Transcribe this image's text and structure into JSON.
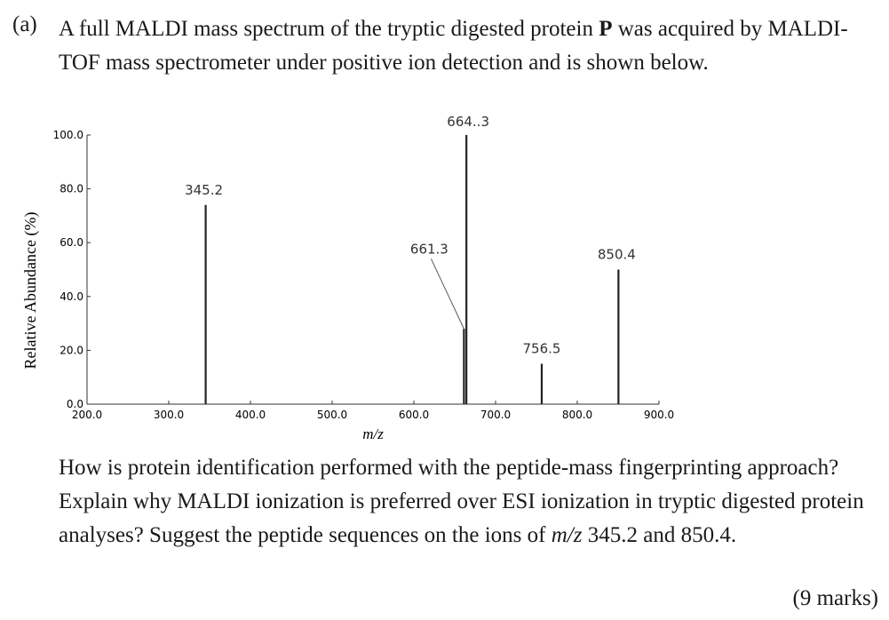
{
  "header": {
    "part_label": "(a)",
    "intro_before_bold": "A full MALDI mass spectrum of the tryptic digested protein ",
    "intro_bold": "P",
    "intro_after_bold": " was acquired by MALDI-TOF mass spectrometer under positive ion detection and is shown below."
  },
  "question": {
    "text_before_mz": "How is protein identification performed with the peptide-mass fingerprinting approach? Explain why MALDI ionization is preferred over ESI ionization in tryptic digested protein analyses? Suggest the peptide sequences on the ions of ",
    "mz": "m/z",
    "text_after_mz": " 345.2 and 850.4.",
    "marks": "(9 marks)"
  },
  "chart_data": {
    "type": "bar",
    "xlabel": "m/z",
    "ylabel": "Relative Abundance (%)",
    "xlim": [
      200.0,
      900.0
    ],
    "ylim": [
      0.0,
      100.0
    ],
    "x_ticks": [
      "200.0",
      "300.0",
      "400.0",
      "500.0",
      "600.0",
      "700.0",
      "800.0",
      "900.0"
    ],
    "y_ticks": [
      "0.0",
      "20.0",
      "40.0",
      "60.0",
      "80.0",
      "100.0"
    ],
    "peaks": [
      {
        "mz": 345.2,
        "abundance": 74,
        "label": "345.2"
      },
      {
        "mz": 661.3,
        "abundance": 28,
        "label": "661.3"
      },
      {
        "mz": 664.3,
        "abundance": 100,
        "label": "664..3"
      },
      {
        "mz": 756.5,
        "abundance": 15,
        "label": "756.5"
      },
      {
        "mz": 850.4,
        "abundance": 50,
        "label": "850.4"
      }
    ]
  }
}
